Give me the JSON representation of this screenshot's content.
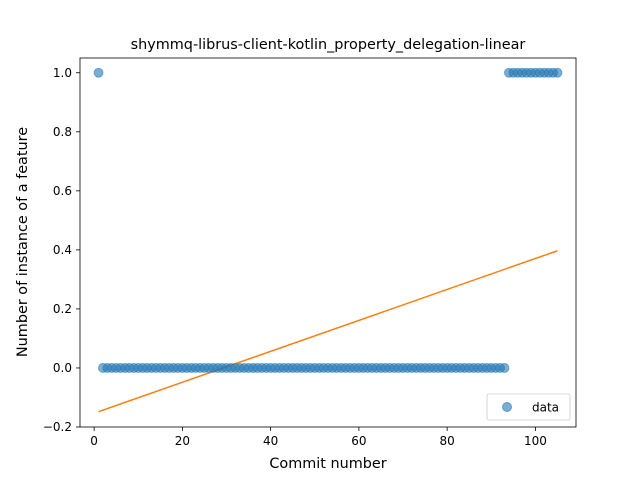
{
  "chart_data": {
    "type": "scatter",
    "title": "shymmq-librus-client-kotlin_property_delegation-linear",
    "xlabel": "Commit number",
    "ylabel": "Number of instance of a feature",
    "xlim": [
      -3.2,
      109.2
    ],
    "ylim": [
      -0.2,
      1.05
    ],
    "xticks": [
      0,
      20,
      40,
      60,
      80,
      100
    ],
    "yticks": [
      -0.2,
      0.0,
      0.2,
      0.4,
      0.6,
      0.8,
      1.0
    ],
    "xtick_labels": [
      "0",
      "20",
      "40",
      "60",
      "80",
      "100"
    ],
    "ytick_labels": [
      "−0.2",
      "0.0",
      "0.2",
      "0.4",
      "0.6",
      "0.8",
      "1.0"
    ],
    "legend": {
      "placement": "lower-right",
      "entries": [
        "data"
      ]
    },
    "grid": false,
    "colors": {
      "data": "#1f77b4",
      "fit": "#ff7f0e"
    },
    "series": [
      {
        "name": "data",
        "kind": "scatter",
        "points": [
          [
            1,
            1
          ],
          [
            2,
            0
          ],
          [
            3,
            0
          ],
          [
            4,
            0
          ],
          [
            5,
            0
          ],
          [
            6,
            0
          ],
          [
            7,
            0
          ],
          [
            8,
            0
          ],
          [
            9,
            0
          ],
          [
            10,
            0
          ],
          [
            11,
            0
          ],
          [
            12,
            0
          ],
          [
            13,
            0
          ],
          [
            14,
            0
          ],
          [
            15,
            0
          ],
          [
            16,
            0
          ],
          [
            17,
            0
          ],
          [
            18,
            0
          ],
          [
            19,
            0
          ],
          [
            20,
            0
          ],
          [
            21,
            0
          ],
          [
            22,
            0
          ],
          [
            23,
            0
          ],
          [
            24,
            0
          ],
          [
            25,
            0
          ],
          [
            26,
            0
          ],
          [
            27,
            0
          ],
          [
            28,
            0
          ],
          [
            29,
            0
          ],
          [
            30,
            0
          ],
          [
            31,
            0
          ],
          [
            32,
            0
          ],
          [
            33,
            0
          ],
          [
            34,
            0
          ],
          [
            35,
            0
          ],
          [
            36,
            0
          ],
          [
            37,
            0
          ],
          [
            38,
            0
          ],
          [
            39,
            0
          ],
          [
            40,
            0
          ],
          [
            41,
            0
          ],
          [
            42,
            0
          ],
          [
            43,
            0
          ],
          [
            44,
            0
          ],
          [
            45,
            0
          ],
          [
            46,
            0
          ],
          [
            47,
            0
          ],
          [
            48,
            0
          ],
          [
            49,
            0
          ],
          [
            50,
            0
          ],
          [
            51,
            0
          ],
          [
            52,
            0
          ],
          [
            53,
            0
          ],
          [
            54,
            0
          ],
          [
            55,
            0
          ],
          [
            56,
            0
          ],
          [
            57,
            0
          ],
          [
            58,
            0
          ],
          [
            59,
            0
          ],
          [
            60,
            0
          ],
          [
            61,
            0
          ],
          [
            62,
            0
          ],
          [
            63,
            0
          ],
          [
            64,
            0
          ],
          [
            65,
            0
          ],
          [
            66,
            0
          ],
          [
            67,
            0
          ],
          [
            68,
            0
          ],
          [
            69,
            0
          ],
          [
            70,
            0
          ],
          [
            71,
            0
          ],
          [
            72,
            0
          ],
          [
            73,
            0
          ],
          [
            74,
            0
          ],
          [
            75,
            0
          ],
          [
            76,
            0
          ],
          [
            77,
            0
          ],
          [
            78,
            0
          ],
          [
            79,
            0
          ],
          [
            80,
            0
          ],
          [
            81,
            0
          ],
          [
            82,
            0
          ],
          [
            83,
            0
          ],
          [
            84,
            0
          ],
          [
            85,
            0
          ],
          [
            86,
            0
          ],
          [
            87,
            0
          ],
          [
            88,
            0
          ],
          [
            89,
            0
          ],
          [
            90,
            0
          ],
          [
            91,
            0
          ],
          [
            92,
            0
          ],
          [
            93,
            0
          ],
          [
            94,
            1
          ],
          [
            95,
            1
          ],
          [
            96,
            1
          ],
          [
            97,
            1
          ],
          [
            98,
            1
          ],
          [
            99,
            1
          ],
          [
            100,
            1
          ],
          [
            101,
            1
          ],
          [
            102,
            1
          ],
          [
            103,
            1
          ],
          [
            104,
            1
          ],
          [
            105,
            1
          ]
        ]
      },
      {
        "name": "",
        "kind": "line",
        "points": [
          [
            1,
            -0.148
          ],
          [
            105,
            0.397
          ]
        ]
      }
    ]
  }
}
